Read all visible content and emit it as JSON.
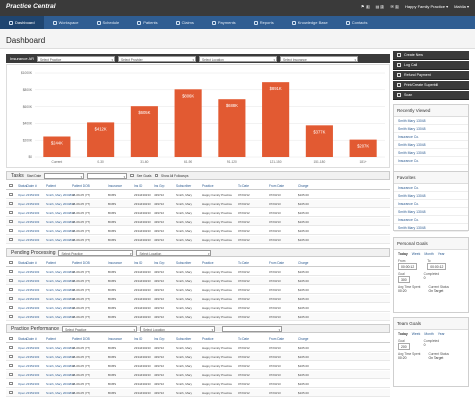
{
  "app": {
    "logo_text": "Practice Central",
    "practice_name": "Happy Family Practice",
    "user_name": "Mahlia",
    "notifications": [
      {
        "icon": "flag-icon",
        "count": "4"
      },
      {
        "icon": "clipboard-icon",
        "count": "2"
      },
      {
        "icon": "mail-icon",
        "count": "1"
      }
    ]
  },
  "nav": {
    "tabs": [
      {
        "label": "Dashboard",
        "active": true
      },
      {
        "label": "Workspace",
        "active": false
      },
      {
        "label": "Schedule",
        "active": false
      },
      {
        "label": "Patients",
        "active": false
      },
      {
        "label": "Claims",
        "active": false
      },
      {
        "label": "Payments",
        "active": false
      },
      {
        "label": "Reports",
        "active": false
      },
      {
        "label": "Knowledge Base",
        "active": false
      },
      {
        "label": "Contacts",
        "active": false
      }
    ]
  },
  "page": {
    "title": "Dashboard"
  },
  "insurance_panel": {
    "title": "Insurance AR",
    "filters": [
      "Select Practice",
      "Select Provider",
      "Select Location",
      "Select Insurance"
    ]
  },
  "chart_data": {
    "type": "bar",
    "categories": [
      "Current",
      "0-30",
      "31-60",
      "61-90",
      "91-120",
      "121-150",
      "151-180",
      "181+"
    ],
    "values": [
      244,
      412,
      605,
      806,
      688,
      891,
      377,
      207
    ],
    "data_labels": [
      "$244K",
      "$412K",
      "$605K",
      "$806K",
      "$688K",
      "$891K",
      "$377K",
      "$207K"
    ],
    "y_ticks": [
      "$0",
      "$200K",
      "$400K",
      "$600K",
      "$800K",
      "$1000K"
    ],
    "ylim": [
      0,
      1000
    ],
    "colors": {
      "bar": "#e25a32",
      "grid": "#e6e6e6"
    }
  },
  "tasks_panel": {
    "title": "Tasks",
    "filter_label": "Start Date",
    "checkbox1": "See Goals",
    "checkbox2": "Show All Followups",
    "columns": [
      "Status",
      "Claim #",
      "Patient",
      "Patient DOB",
      "Insurance",
      "Ins ID",
      "Ins Grp",
      "Subscriber",
      "Practice",
      "To Date",
      "From Date",
      "Charge"
    ],
    "rows": [
      [
        "Open",
        "23352303",
        "Smith, Mary 2034812",
        "06-09-05 (77)",
        "BCBS",
        "2334430233",
        "439722",
        "Smith, Mary",
        "Happy Family Practice",
        "07/03/12",
        "07/03/13",
        "$105.00"
      ],
      [
        "Open",
        "23352303",
        "Smith, Mary 2034812",
        "06-09-05 (77)",
        "BCBS",
        "2334430233",
        "439722",
        "Smith, Mary",
        "Happy Family Practice",
        "07/03/12",
        "07/03/13",
        "$105.00"
      ],
      [
        "Open",
        "23352303",
        "Smith, Mary 2034812",
        "06-09-05 (77)",
        "BCBS",
        "2334430233",
        "439722",
        "Smith, Mary",
        "Happy Family Practice",
        "07/03/12",
        "07/03/13",
        "$105.00"
      ],
      [
        "Open",
        "23352303",
        "Smith, Mary 2034812",
        "06-09-05 (77)",
        "BCBS",
        "2334430233",
        "439722",
        "Smith, Mary",
        "Happy Family Practice",
        "07/03/12",
        "07/03/13",
        "$105.00"
      ],
      [
        "Open",
        "23352303",
        "Smith, Mary 2034812",
        "06-09-05 (77)",
        "BCBS",
        "2334430233",
        "439722",
        "Smith, Mary",
        "Happy Family Practice",
        "07/03/12",
        "07/03/13",
        "$105.00"
      ],
      [
        "Open",
        "23352303",
        "Smith, Mary 2034812",
        "06-09-05 (77)",
        "BCBS",
        "2334430233",
        "439722",
        "Smith, Mary",
        "Happy Family Practice",
        "07/03/12",
        "07/03/13",
        "$105.00"
      ]
    ]
  },
  "pending_panel": {
    "title": "Pending Processing",
    "filters": [
      "Select Practice",
      "Select Location"
    ],
    "columns": [
      "Status",
      "Claim #",
      "Patient",
      "Patient DOB",
      "Insurance",
      "Ins ID",
      "Ins Grp",
      "Subscriber",
      "Practice",
      "To Date",
      "From Date",
      "Charge"
    ],
    "rows": [
      [
        "Open",
        "23352303",
        "Smith, Mary 2034812",
        "06-09-05 (77)",
        "BCBS",
        "2334430233",
        "439722",
        "Smith, Mary",
        "Happy Family Practice",
        "07/03/12",
        "07/03/13",
        "$105.00"
      ],
      [
        "Open",
        "23352303",
        "Smith, Mary 2034812",
        "06-09-05 (77)",
        "BCBS",
        "2334430233",
        "439722",
        "Smith, Mary",
        "Happy Family Practice",
        "07/03/12",
        "07/03/13",
        "$105.00"
      ],
      [
        "Open",
        "23352303",
        "Smith, Mary 2034812",
        "06-09-05 (77)",
        "BCBS",
        "2334430233",
        "439722",
        "Smith, Mary",
        "Happy Family Practice",
        "07/03/12",
        "07/03/13",
        "$105.00"
      ],
      [
        "Open",
        "23352303",
        "Smith, Mary 2034812",
        "06-09-05 (77)",
        "BCBS",
        "2334430233",
        "439722",
        "Smith, Mary",
        "Happy Family Practice",
        "07/03/12",
        "07/03/13",
        "$105.00"
      ],
      [
        "Open",
        "23352303",
        "Smith, Mary 2034812",
        "06-09-05 (77)",
        "BCBS",
        "2334430233",
        "439722",
        "Smith, Mary",
        "Happy Family Practice",
        "07/03/12",
        "07/03/13",
        "$105.00"
      ],
      [
        "Open",
        "23352303",
        "Smith, Mary 2034812",
        "06-09-05 (77)",
        "BCBS",
        "2334430233",
        "439722",
        "Smith, Mary",
        "Happy Family Practice",
        "07/03/12",
        "07/03/13",
        "$105.00"
      ]
    ]
  },
  "performance_panel": {
    "title": "Practice Performance",
    "filters": [
      "Select Practice",
      "Select Location"
    ],
    "columns": [
      "Status",
      "Claim #",
      "Patient",
      "Patient DOB",
      "Insurance",
      "Ins ID",
      "Ins Grp",
      "Subscriber",
      "Practice",
      "To Date",
      "From Date",
      "Charge"
    ],
    "rows": [
      [
        "Open",
        "23352303",
        "Smith, Mary 2034812",
        "06-09-05 (77)",
        "BCBS",
        "2334430233",
        "439722",
        "Smith, Mary",
        "Happy Family Practice",
        "07/03/12",
        "07/03/13",
        "$105.00"
      ],
      [
        "Open",
        "23352303",
        "Smith, Mary 2034812",
        "06-09-05 (77)",
        "BCBS",
        "2334430233",
        "439722",
        "Smith, Mary",
        "Happy Family Practice",
        "07/03/12",
        "07/03/13",
        "$105.00"
      ],
      [
        "Open",
        "23352303",
        "Smith, Mary 2034812",
        "06-09-05 (77)",
        "BCBS",
        "2334430233",
        "439722",
        "Smith, Mary",
        "Happy Family Practice",
        "07/03/12",
        "07/03/13",
        "$105.00"
      ],
      [
        "Open",
        "23352303",
        "Smith, Mary 2034812",
        "06-09-05 (77)",
        "BCBS",
        "2334430233",
        "439722",
        "Smith, Mary",
        "Happy Family Practice",
        "07/03/12",
        "07/03/13",
        "$105.00"
      ],
      [
        "Open",
        "23352303",
        "Smith, Mary 2034812",
        "06-09-05 (77)",
        "BCBS",
        "2334430233",
        "439722",
        "Smith, Mary",
        "Happy Family Practice",
        "07/03/12",
        "07/03/13",
        "$105.00"
      ],
      [
        "Open",
        "23352303",
        "Smith, Mary 2034812",
        "06-09-05 (77)",
        "BCBS",
        "2334430233",
        "439722",
        "Smith, Mary",
        "Happy Family Practice",
        "07/03/12",
        "07/03/13",
        "$105.00"
      ]
    ]
  },
  "actions": [
    {
      "label": "Create New",
      "icon": "plus-icon"
    },
    {
      "label": "Log Call",
      "icon": "phone-icon"
    },
    {
      "label": "Refund Payment",
      "icon": "refund-icon"
    },
    {
      "label": "Print/Create Superbill",
      "icon": "print-icon"
    },
    {
      "label": "Scan",
      "icon": "scan-icon"
    }
  ],
  "recently_viewed": {
    "title": "Recently Viewed",
    "items": [
      "Smith Mary 13048",
      "Smith Mary 13048",
      "Insurance Co.",
      "Smith Mary 13048",
      "Smith Mary 13048",
      "Insurance Co."
    ]
  },
  "favorites": {
    "title": "Favorites",
    "items": [
      "Insurance Co.",
      "Smith Mary 13048",
      "Insurance Co.",
      "Smith Mary 13048",
      "Insurance Co.",
      "Smith Mary 13048"
    ]
  },
  "personal_goals": {
    "title": "Personal Goals",
    "tabs": [
      "Today",
      "Week",
      "Month",
      "Year"
    ],
    "from_label": "From",
    "from_value": "00:00:12",
    "to_label": "To",
    "to_value": "00:00:12",
    "goal_label": "Goal",
    "goal_value": "300",
    "completed_label": "Completed",
    "completed_value": "0",
    "avg_label": "Avg Time Spent",
    "avg_value": "00:20",
    "status_label": "Current Status",
    "status_value": "On Target"
  },
  "team_goals": {
    "title": "Team Goals",
    "tabs": [
      "Today",
      "Week",
      "Month",
      "Year"
    ],
    "goal_label": "Goal",
    "goal_value": "200",
    "completed_label": "Completed",
    "completed_value": "0",
    "avg_label": "Avg Time Spent",
    "avg_value": "00:20",
    "status_label": "Current Status",
    "status_value": "On Target"
  }
}
